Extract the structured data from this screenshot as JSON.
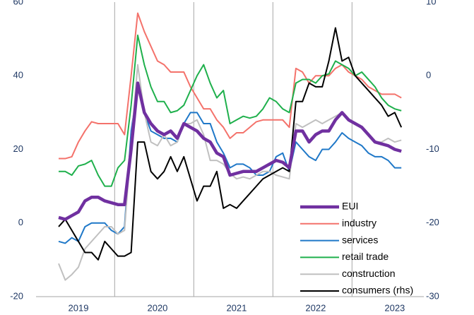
{
  "chart_data": {
    "type": "line",
    "categories": [
      null,
      null,
      null,
      "2019",
      null,
      null,
      null,
      null,
      null,
      null,
      null,
      null,
      null,
      null,
      null,
      "2020",
      null,
      null,
      null,
      null,
      null,
      null,
      null,
      null,
      null,
      null,
      null,
      "2021",
      null,
      null,
      null,
      null,
      null,
      null,
      null,
      null,
      null,
      null,
      null,
      "2022",
      null,
      null,
      null,
      null,
      null,
      null,
      null,
      null,
      null,
      null,
      null,
      "2023",
      null
    ],
    "ylim": [
      -20,
      60
    ],
    "yticks": [
      -20,
      0,
      20,
      40,
      60
    ],
    "y2lim": [
      -30,
      10
    ],
    "y2ticks": [
      -30,
      -20,
      -10,
      0,
      10
    ],
    "legend": "lower right",
    "series": [
      {
        "name": "EUI",
        "color": "#7030a0",
        "values": [
          1.5,
          1,
          2,
          3,
          6,
          7,
          7,
          6,
          5.5,
          5,
          5,
          20,
          38,
          30,
          27,
          25,
          24,
          25,
          23,
          27,
          26,
          25,
          23,
          22,
          19,
          18,
          13,
          13.5,
          14,
          14,
          14,
          15,
          16,
          17,
          16.5,
          15,
          25,
          25,
          22,
          24,
          25,
          25,
          28,
          30,
          28,
          27,
          26,
          24,
          22,
          21.5,
          21,
          20,
          19.5
        ]
      },
      {
        "name": "industry",
        "color": "#f4726b",
        "values": [
          17.5,
          17.5,
          18,
          22,
          25,
          27.5,
          27,
          27,
          27,
          27,
          24,
          40,
          57,
          52,
          48,
          44,
          43,
          41,
          41,
          41,
          37,
          34,
          31,
          31,
          28,
          26,
          23,
          24.5,
          24.5,
          26,
          27.5,
          28,
          28,
          28,
          28,
          26,
          42,
          41,
          38,
          40,
          40,
          40,
          42,
          43,
          41,
          40,
          39,
          37,
          36,
          35,
          35,
          35,
          34
        ]
      },
      {
        "name": "services",
        "color": "#1f78c8",
        "values": [
          -5,
          -5.5,
          -4,
          -5,
          -1,
          0,
          0,
          0,
          -2,
          -3,
          -1,
          25,
          37,
          30,
          25,
          24,
          23,
          23,
          22,
          27,
          30,
          30,
          27,
          27,
          22,
          19,
          15,
          16,
          16,
          15,
          13,
          13,
          14,
          18,
          19,
          14,
          22,
          20,
          18,
          17,
          20,
          20,
          22,
          24.5,
          23,
          22,
          21,
          19,
          18,
          18,
          17,
          15,
          15
        ]
      },
      {
        "name": "retail trade",
        "color": "#1fb04c",
        "values": [
          14,
          14,
          13,
          15.5,
          16,
          17,
          13,
          10,
          10,
          15,
          17,
          32,
          51,
          43,
          37,
          33,
          33,
          30,
          30.5,
          32,
          36,
          40,
          43,
          38,
          34,
          36,
          27,
          28,
          29,
          28.5,
          29,
          31,
          34,
          33,
          31,
          30,
          38,
          39,
          39,
          38,
          40,
          40.5,
          44,
          43,
          42,
          40,
          41,
          39,
          37,
          34,
          32,
          31,
          30.5
        ]
      },
      {
        "name": "construction",
        "color": "#c0c0c0",
        "values": [
          -11,
          -15.5,
          -14,
          -12,
          -7,
          -5,
          -3,
          -1,
          -1,
          -3,
          -2,
          22,
          43,
          30,
          22,
          21,
          24,
          21,
          22,
          27,
          27,
          28,
          24,
          17,
          17,
          16,
          13.5,
          12,
          12.5,
          12,
          13,
          14,
          14,
          13,
          12.5,
          12,
          27,
          26,
          27,
          28,
          27,
          28,
          29,
          30,
          28,
          27,
          26,
          24,
          22,
          22,
          23,
          22,
          22.5
        ]
      },
      {
        "name": "consumers (rhs)",
        "color": "#000000",
        "axis": "y2",
        "values": [
          -20.5,
          -19.5,
          -21,
          -22.5,
          -24,
          -24,
          -25,
          -22.5,
          -23.5,
          -24.5,
          -24.5,
          -24,
          -9,
          -9,
          -13,
          -14,
          -13,
          -11,
          -13,
          -11,
          -14,
          -17,
          -15,
          -15,
          -13,
          -18,
          -17.5,
          -18,
          -17,
          -16,
          -15,
          -14,
          -13.5,
          -13,
          -12.5,
          -13,
          -3.5,
          -3.5,
          -1,
          -1.5,
          -1.5,
          2,
          6.5,
          2,
          2.5,
          0,
          -1,
          -2,
          -3,
          -4,
          -5.5,
          -5,
          -7
        ]
      }
    ]
  }
}
